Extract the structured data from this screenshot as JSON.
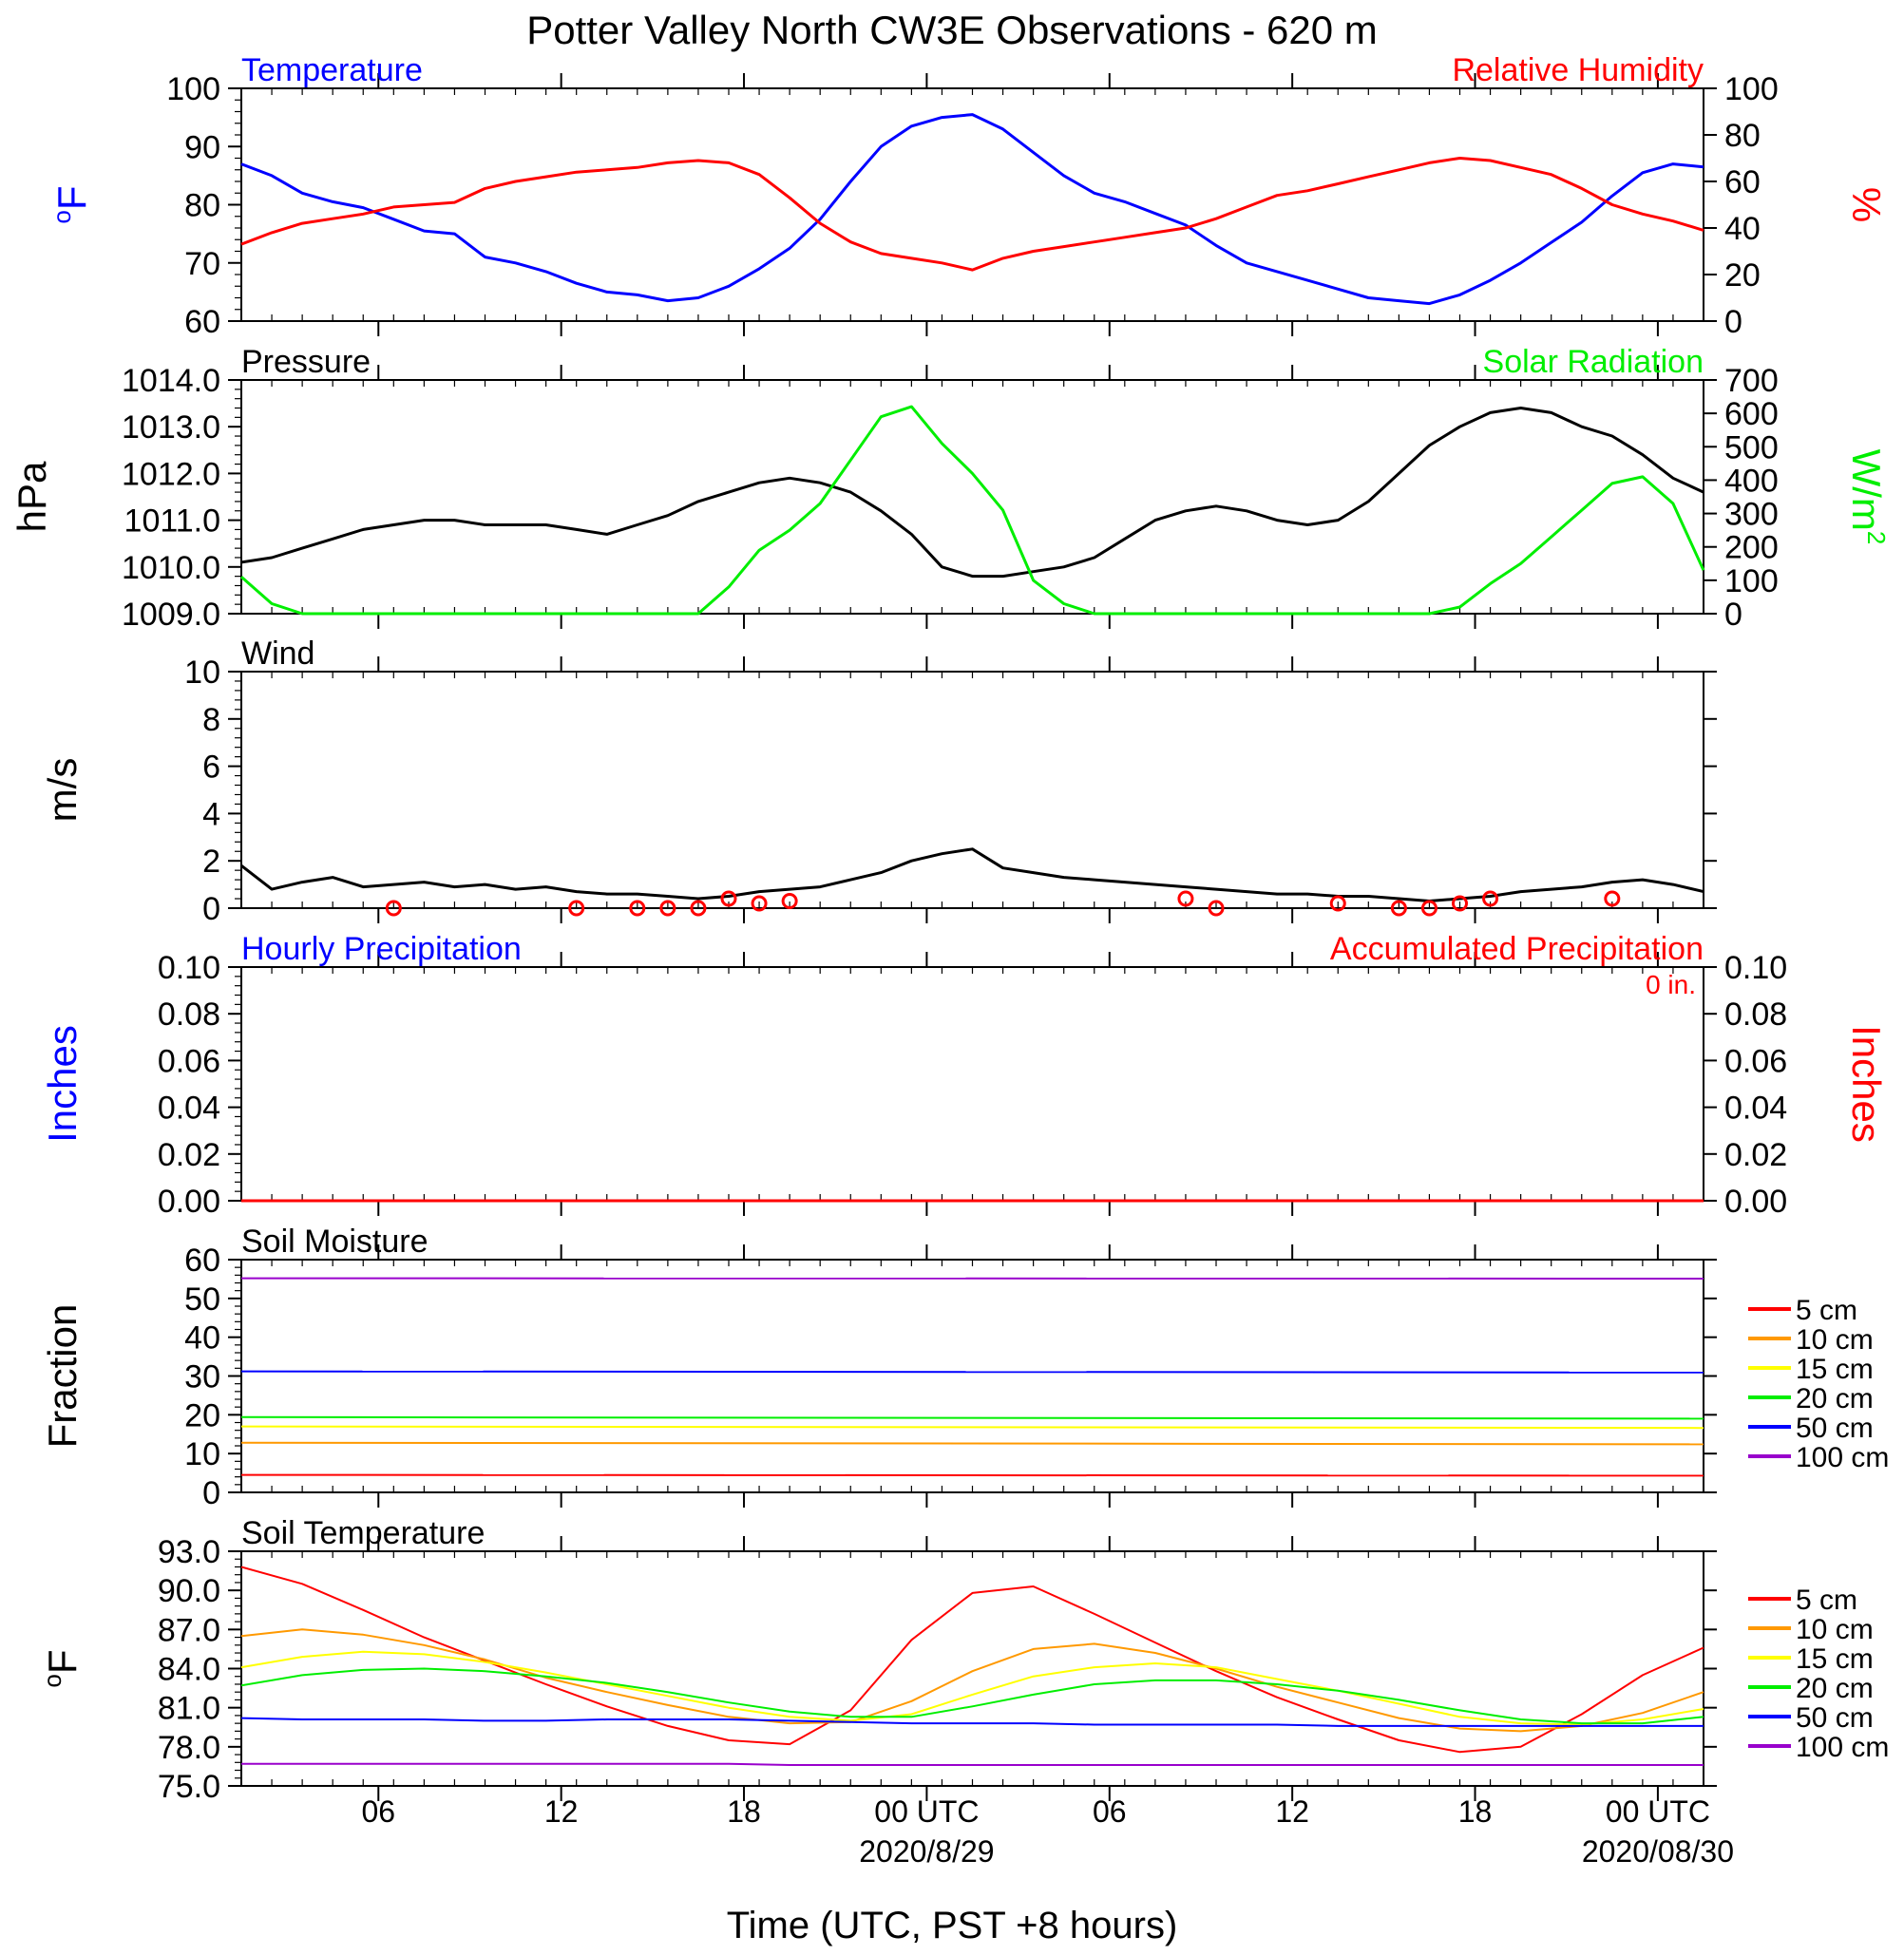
{
  "page_title": "Potter Valley North CW3E Observations - 620 m",
  "x_axis_title": "Time (UTC, PST +8 hours)",
  "time_tick_labels": [
    "06",
    "12",
    "18",
    "00 UTC",
    "06",
    "12",
    "18",
    "00 UTC"
  ],
  "date_labels": [
    "2020/8/29",
    "2020/08/30"
  ],
  "legend_labels": [
    "5 cm",
    "10 cm",
    "15 cm",
    "20 cm",
    "50 cm",
    "100 cm"
  ],
  "legend_colors": [
    "#ff0000",
    "#ff9900",
    "#ffff00",
    "#00ee00",
    "#0000ff",
    "#9900cc"
  ],
  "precip_total_label": "0 in.",
  "chart_data": [
    {
      "type": "line",
      "title_left": "Temperature",
      "title_right": "Relative Humidity",
      "ylabel_left_sup": "o",
      "ylabel_left": "F",
      "ylabel_right": "%",
      "ylim_left": [
        60,
        100
      ],
      "ylim_right": [
        0,
        100
      ],
      "x_hours": [
        0,
        1,
        2,
        3,
        4,
        5,
        6,
        7,
        8,
        9,
        10,
        11,
        12,
        13,
        14,
        15,
        16,
        17,
        18,
        19,
        20,
        21,
        22,
        23,
        24,
        25,
        26,
        27,
        28,
        29,
        30,
        31,
        32,
        33,
        34,
        35,
        36,
        37,
        38,
        39,
        40,
        41,
        42,
        43,
        44,
        45,
        46,
        47,
        48
      ],
      "series": [
        {
          "name": "Temperature",
          "color": "#0000ff",
          "axis": "left",
          "values": [
            87,
            85,
            82,
            80.5,
            79.5,
            77.5,
            75.5,
            75,
            71,
            70,
            68.5,
            66.5,
            65,
            64.5,
            63.5,
            64,
            66,
            69,
            72.5,
            77.5,
            84,
            90,
            93.5,
            95,
            95.5,
            93,
            89,
            85,
            82,
            80.5,
            78.5,
            76.5,
            73,
            70,
            68.5,
            67,
            65.5,
            64,
            63.5,
            63,
            64.5,
            67,
            70,
            73.5,
            77,
            81.5,
            85.5,
            87,
            86.5
          ]
        },
        {
          "name": "Relative Humidity",
          "color": "#ff0000",
          "axis": "right",
          "values": [
            33,
            38,
            42,
            44,
            46,
            49,
            50,
            51,
            57,
            60,
            62,
            64,
            65,
            66,
            68,
            69,
            68,
            63,
            53,
            42,
            34,
            29,
            27,
            25,
            22,
            27,
            30,
            32,
            34,
            36,
            38,
            40,
            44,
            49,
            54,
            56,
            59,
            62,
            65,
            68,
            70,
            69,
            66,
            63,
            57,
            50,
            46,
            43,
            39
          ]
        }
      ]
    },
    {
      "type": "line",
      "title_left": "Pressure",
      "title_right": "Solar Radiation",
      "ylabel_left": "hPa",
      "ylabel_right": "W/m",
      "ylabel_right_sup": "2",
      "ylim_left": [
        1009.0,
        1014.0
      ],
      "ylim_right": [
        0,
        700
      ],
      "x_hours": [
        0,
        1,
        2,
        3,
        4,
        5,
        6,
        7,
        8,
        9,
        10,
        11,
        12,
        13,
        14,
        15,
        16,
        17,
        18,
        19,
        20,
        21,
        22,
        23,
        24,
        25,
        26,
        27,
        28,
        29,
        30,
        31,
        32,
        33,
        34,
        35,
        36,
        37,
        38,
        39,
        40,
        41,
        42,
        43,
        44,
        45,
        46,
        47,
        48
      ],
      "series": [
        {
          "name": "Pressure",
          "color": "#000000",
          "axis": "left",
          "values": [
            1010.1,
            1010.2,
            1010.4,
            1010.6,
            1010.8,
            1010.9,
            1011.0,
            1011.0,
            1010.9,
            1010.9,
            1010.9,
            1010.8,
            1010.7,
            1010.9,
            1011.1,
            1011.4,
            1011.6,
            1011.8,
            1011.9,
            1011.8,
            1011.6,
            1011.2,
            1010.7,
            1010.0,
            1009.8,
            1009.8,
            1009.9,
            1010.0,
            1010.2,
            1010.6,
            1011.0,
            1011.2,
            1011.3,
            1011.2,
            1011.0,
            1010.9,
            1011.0,
            1011.4,
            1012.0,
            1012.6,
            1013.0,
            1013.3,
            1013.4,
            1013.3,
            1013.0,
            1012.8,
            1012.4,
            1011.9,
            1011.6
          ]
        },
        {
          "name": "Solar Radiation",
          "color": "#00ee00",
          "axis": "right",
          "values": [
            110,
            30,
            0,
            0,
            0,
            0,
            0,
            0,
            0,
            0,
            0,
            0,
            0,
            0,
            0,
            0,
            80,
            190,
            250,
            330,
            460,
            590,
            620,
            510,
            420,
            310,
            100,
            30,
            0,
            0,
            0,
            0,
            0,
            0,
            0,
            0,
            0,
            0,
            0,
            0,
            20,
            90,
            150,
            230,
            310,
            390,
            410,
            330,
            130
          ]
        }
      ]
    },
    {
      "type": "line",
      "title_left": "Wind",
      "ylabel_left": "m/s",
      "ylim_left": [
        0,
        10
      ],
      "x_hours": [
        0,
        1,
        2,
        3,
        4,
        5,
        6,
        7,
        8,
        9,
        10,
        11,
        12,
        13,
        14,
        15,
        16,
        17,
        18,
        19,
        20,
        21,
        22,
        23,
        24,
        25,
        26,
        27,
        28,
        29,
        30,
        31,
        32,
        33,
        34,
        35,
        36,
        37,
        38,
        39,
        40,
        41,
        42,
        43,
        44,
        45,
        46,
        47,
        48
      ],
      "series": [
        {
          "name": "Wind Speed",
          "color": "#000000",
          "axis": "left",
          "values": [
            1.8,
            0.8,
            1.1,
            1.3,
            0.9,
            1.0,
            1.1,
            0.9,
            1.0,
            0.8,
            0.9,
            0.7,
            0.6,
            0.6,
            0.5,
            0.4,
            0.5,
            0.7,
            0.8,
            0.9,
            1.2,
            1.5,
            2.0,
            2.3,
            2.5,
            1.7,
            1.5,
            1.3,
            1.2,
            1.1,
            1.0,
            0.9,
            0.8,
            0.7,
            0.6,
            0.6,
            0.5,
            0.5,
            0.4,
            0.3,
            0.4,
            0.5,
            0.7,
            0.8,
            0.9,
            1.1,
            1.2,
            1.0,
            0.7
          ]
        }
      ],
      "calm_marker_hours": [
        5,
        11,
        13,
        14,
        15,
        16,
        17,
        18,
        31,
        32,
        36,
        38,
        39,
        40,
        41,
        45
      ],
      "calm_marker_values": [
        0.0,
        0.0,
        0.0,
        0.0,
        0.0,
        0.4,
        0.2,
        0.3,
        0.4,
        0.0,
        0.2,
        0.0,
        0.0,
        0.2,
        0.4,
        0.4
      ]
    },
    {
      "type": "line",
      "title_left": "Hourly Precipitation",
      "title_right": "Accumulated Precipitation",
      "ylabel_left": "Inches",
      "ylabel_right": "Inches",
      "ylim_left": [
        0,
        0.1
      ],
      "ylim_right": [
        0,
        0.1
      ],
      "x_hours": [
        0,
        48
      ],
      "series": [
        {
          "name": "Hourly Precipitation",
          "color": "#0000ff",
          "axis": "left",
          "values": [
            0,
            0
          ]
        },
        {
          "name": "Accumulated Precipitation",
          "color": "#ff0000",
          "axis": "right",
          "values": [
            0,
            0
          ]
        }
      ]
    },
    {
      "type": "line",
      "title_left": "Soil Moisture",
      "ylabel_left": "Fraction",
      "ylim_left": [
        0,
        60
      ],
      "x_hours": [
        0,
        48
      ],
      "series": [
        {
          "name": "5 cm",
          "color": "#ff0000",
          "axis": "left",
          "values": [
            4.5,
            4.3
          ]
        },
        {
          "name": "10 cm",
          "color": "#ff9900",
          "axis": "left",
          "values": [
            12.8,
            12.4
          ]
        },
        {
          "name": "15 cm",
          "color": "#ffff00",
          "axis": "left",
          "values": [
            17.0,
            16.6
          ]
        },
        {
          "name": "20 cm",
          "color": "#00ee00",
          "axis": "left",
          "values": [
            19.4,
            19.0
          ]
        },
        {
          "name": "50 cm",
          "color": "#0000ff",
          "axis": "left",
          "values": [
            31.2,
            30.9
          ]
        },
        {
          "name": "100 cm",
          "color": "#9900cc",
          "axis": "left",
          "values": [
            55.2,
            55.1
          ]
        }
      ]
    },
    {
      "type": "line",
      "title_left": "Soil Temperature",
      "ylabel_left_sup": "o",
      "ylabel_left": "F",
      "ylim_left": [
        75.0,
        93.0
      ],
      "x_hours": [
        0,
        2,
        4,
        6,
        8,
        10,
        12,
        14,
        16,
        18,
        20,
        22,
        24,
        26,
        28,
        30,
        32,
        34,
        36,
        38,
        40,
        42,
        44,
        46,
        48
      ],
      "series": [
        {
          "name": "5 cm",
          "color": "#ff0000",
          "axis": "left",
          "values": [
            91.8,
            90.5,
            88.5,
            86.4,
            84.6,
            82.8,
            81.1,
            79.6,
            78.5,
            78.2,
            80.8,
            86.2,
            89.8,
            90.3,
            88.2,
            86.0,
            83.8,
            81.8,
            80.1,
            78.5,
            77.6,
            78.0,
            80.5,
            83.5,
            85.6
          ]
        },
        {
          "name": "10 cm",
          "color": "#ff9900",
          "axis": "left",
          "values": [
            86.5,
            87.0,
            86.6,
            85.8,
            84.7,
            83.3,
            82.2,
            81.2,
            80.3,
            79.8,
            79.9,
            81.5,
            83.8,
            85.5,
            85.9,
            85.2,
            84.0,
            82.6,
            81.4,
            80.2,
            79.4,
            79.2,
            79.6,
            80.6,
            82.2
          ]
        },
        {
          "name": "15 cm",
          "color": "#ffff00",
          "axis": "left",
          "values": [
            84.1,
            84.9,
            85.3,
            85.1,
            84.5,
            83.7,
            82.8,
            81.9,
            81.0,
            80.3,
            80.0,
            80.5,
            82.0,
            83.4,
            84.1,
            84.4,
            84.1,
            83.2,
            82.3,
            81.3,
            80.3,
            79.8,
            79.7,
            80.1,
            80.9
          ]
        },
        {
          "name": "20 cm",
          "color": "#00ee00",
          "axis": "left",
          "values": [
            82.7,
            83.5,
            83.9,
            84.0,
            83.8,
            83.4,
            82.9,
            82.2,
            81.4,
            80.7,
            80.3,
            80.3,
            81.1,
            82.0,
            82.8,
            83.1,
            83.1,
            82.8,
            82.3,
            81.6,
            80.8,
            80.1,
            79.8,
            79.8,
            80.3
          ]
        },
        {
          "name": "50 cm",
          "color": "#0000ff",
          "axis": "left",
          "values": [
            80.2,
            80.1,
            80.1,
            80.1,
            80.0,
            80.0,
            80.1,
            80.1,
            80.1,
            80.0,
            79.9,
            79.8,
            79.8,
            79.8,
            79.7,
            79.7,
            79.7,
            79.7,
            79.6,
            79.6,
            79.6,
            79.6,
            79.6,
            79.6,
            79.6
          ]
        },
        {
          "name": "100 cm",
          "color": "#9900cc",
          "axis": "left",
          "values": [
            76.7,
            76.7,
            76.7,
            76.7,
            76.7,
            76.7,
            76.7,
            76.7,
            76.7,
            76.6,
            76.6,
            76.6,
            76.6,
            76.6,
            76.6,
            76.6,
            76.6,
            76.6,
            76.6,
            76.6,
            76.6,
            76.6,
            76.6,
            76.6,
            76.6
          ]
        }
      ]
    }
  ]
}
